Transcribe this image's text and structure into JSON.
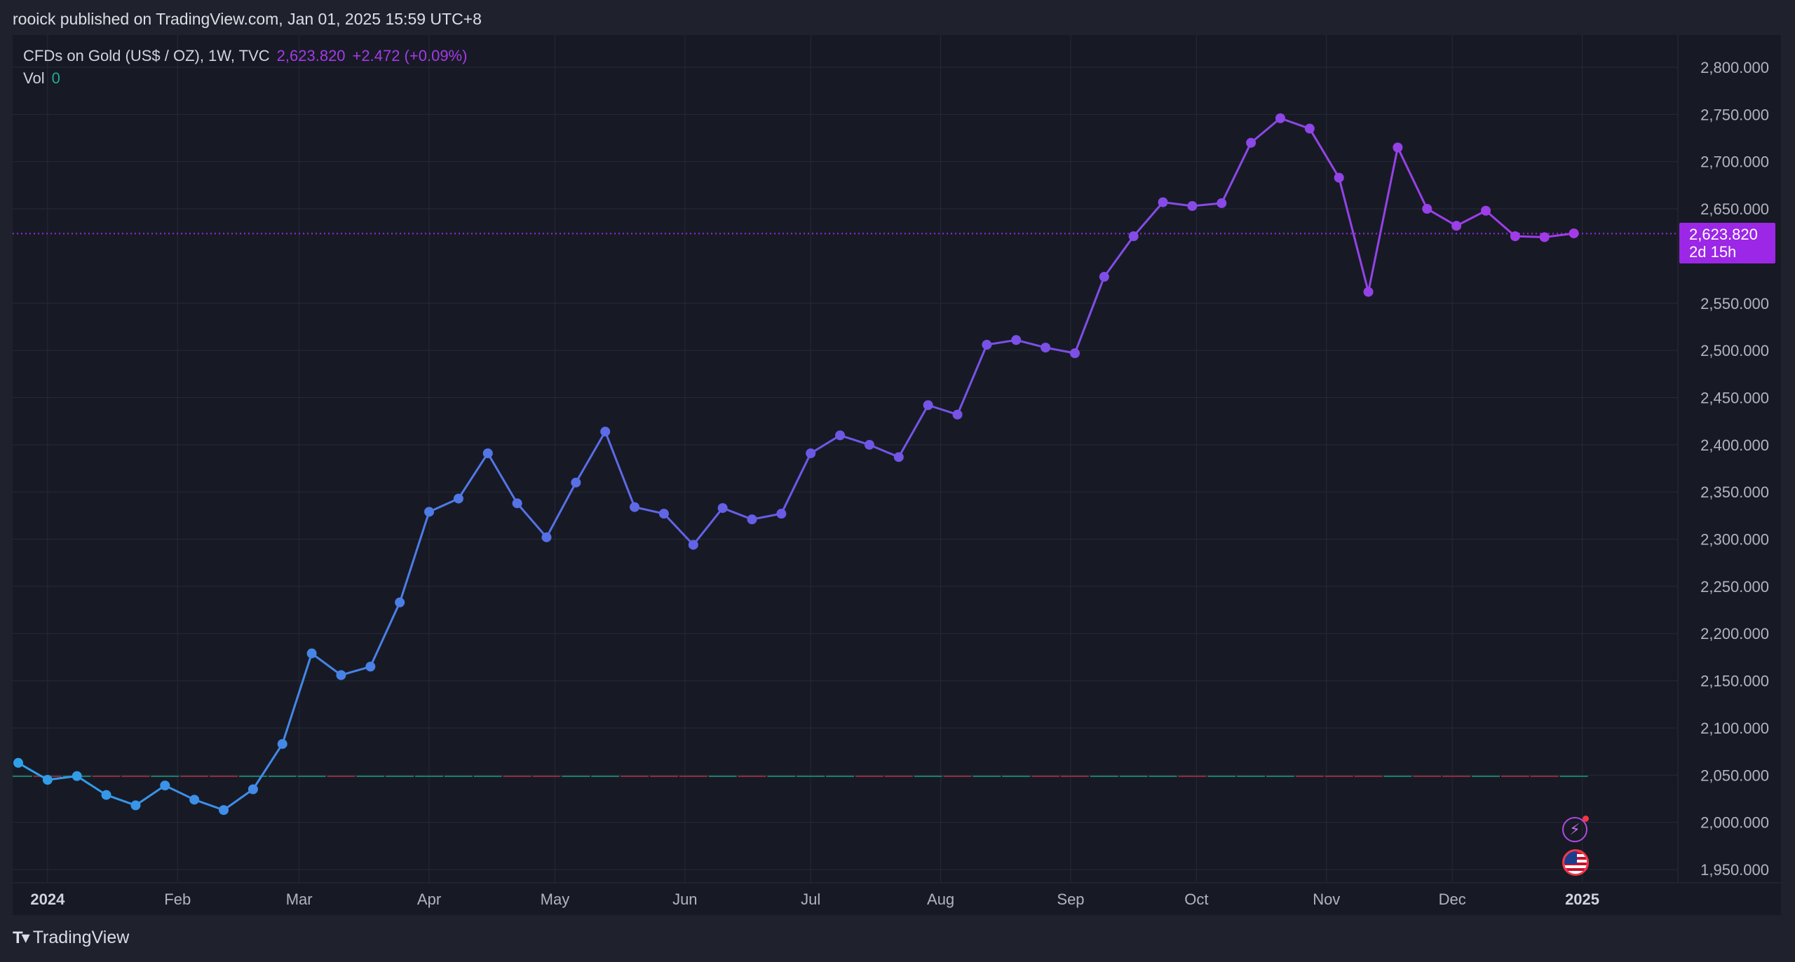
{
  "header": {
    "publisher_line": "rooick published on TradingView.com, Jan 01, 2025 15:59 UTC+8"
  },
  "legend": {
    "symbol": "CFDs on Gold (US$ / OZ), 1W, TVC",
    "price": "2,623.820",
    "change": "+2.472 (+0.09%)",
    "vol_label": "Vol",
    "vol_value": "0"
  },
  "price_tag": {
    "price": "2,623.820",
    "countdown": "2d 15h"
  },
  "footer": {
    "brand": "TradingView"
  },
  "colors": {
    "background": "#171a25",
    "grid": "#262a36",
    "line_start": "#2fa0e8",
    "line_mid": "#6a5ae6",
    "line_end": "#a33ae8",
    "last_price_line": "#9c27e6",
    "axis_text": "#b2b5be"
  },
  "icons": [
    "flash-icon",
    "us-flag-icon"
  ],
  "chart_data": {
    "type": "line",
    "series": [
      {
        "x": [
          "2023-12-25",
          "2024-01-01",
          "2024-01-08",
          "2024-01-15",
          "2024-01-22",
          "2024-01-29",
          "2024-02-05",
          "2024-02-12",
          "2024-02-19",
          "2024-02-26",
          "2024-03-04",
          "2024-03-11",
          "2024-03-18",
          "2024-03-25",
          "2024-04-01",
          "2024-04-08",
          "2024-04-15",
          "2024-04-22",
          "2024-04-29",
          "2024-05-06",
          "2024-05-13",
          "2024-05-20",
          "2024-05-27",
          "2024-06-03",
          "2024-06-10",
          "2024-06-17",
          "2024-06-24",
          "2024-07-01",
          "2024-07-08",
          "2024-07-15",
          "2024-07-22",
          "2024-07-29",
          "2024-08-05",
          "2024-08-12",
          "2024-08-19",
          "2024-08-26",
          "2024-09-02",
          "2024-09-09",
          "2024-09-16",
          "2024-09-23",
          "2024-09-30",
          "2024-10-07",
          "2024-10-14",
          "2024-10-21",
          "2024-10-28",
          "2024-11-04",
          "2024-11-11",
          "2024-11-18",
          "2024-11-25",
          "2024-12-02",
          "2024-12-09",
          "2024-12-16",
          "2024-12-23",
          "2024-12-30"
        ],
        "values": [
          2063,
          2045,
          2049,
          2029,
          2018,
          2039,
          2024,
          2013,
          2035,
          2083,
          2179,
          2156,
          2165,
          2233,
          2329,
          2343,
          2391,
          2338,
          2302,
          2360,
          2414,
          2334,
          2327,
          2294,
          2333,
          2321,
          2327,
          2391,
          2410,
          2400,
          2387,
          2442,
          2432,
          2506,
          2511,
          2503,
          2497,
          2578,
          2621,
          2657,
          2653,
          2656,
          2720,
          2746,
          2735,
          2683,
          2562,
          2715,
          2650,
          2632,
          2648,
          2621,
          2620,
          2624
        ]
      }
    ],
    "x_tick_labels": [
      "2024",
      "Feb",
      "Mar",
      "Apr",
      "May",
      "Jun",
      "Jul",
      "Aug",
      "Sep",
      "Oct",
      "Nov",
      "Dec",
      "2025"
    ],
    "y_tick_labels": [
      "2,800.000",
      "2,750.000",
      "2,700.000",
      "2,650.000",
      "2,550.000",
      "2,500.000",
      "2,450.000",
      "2,400.000",
      "2,350.000",
      "2,300.000",
      "2,250.000",
      "2,200.000",
      "2,150.000",
      "2,100.000",
      "2,050.000",
      "2,000.000",
      "1,950.000"
    ],
    "ylim": [
      1950,
      2800
    ],
    "last_value": 2623.82,
    "volume": 0,
    "grid": true
  }
}
